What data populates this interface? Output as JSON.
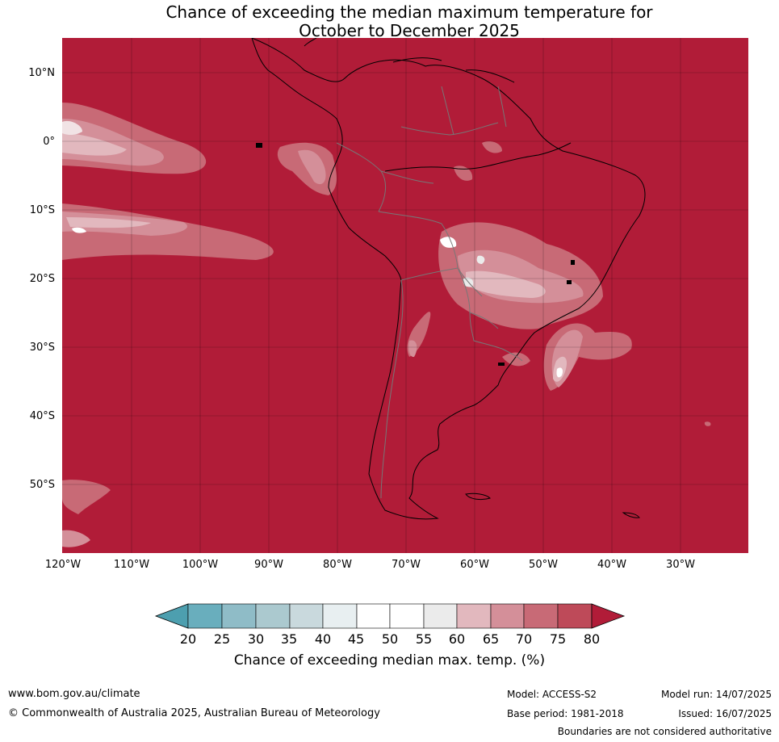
{
  "title_line1": "Chance of exceeding the median maximum temperature for",
  "title_line2": "October to December 2025",
  "map": {
    "lon_range": [
      -120,
      -20
    ],
    "lat_range": [
      -60,
      15
    ],
    "lat_ticks": [
      {
        "lat": 10,
        "label": "10°N"
      },
      {
        "lat": 0,
        "label": "0°"
      },
      {
        "lat": -10,
        "label": "10°S"
      },
      {
        "lat": -20,
        "label": "20°S"
      },
      {
        "lat": -30,
        "label": "30°S"
      },
      {
        "lat": -40,
        "label": "40°S"
      },
      {
        "lat": -50,
        "label": "50°S"
      }
    ],
    "lon_ticks": [
      {
        "lon": -120,
        "label": "120°W"
      },
      {
        "lon": -110,
        "label": "110°W"
      },
      {
        "lon": -100,
        "label": "100°W"
      },
      {
        "lon": -90,
        "label": "90°W"
      },
      {
        "lon": -80,
        "label": "80°W"
      },
      {
        "lon": -70,
        "label": "70°W"
      },
      {
        "lon": -60,
        "label": "60°W"
      },
      {
        "lon": -50,
        "label": "50°W"
      },
      {
        "lon": -40,
        "label": "40°W"
      },
      {
        "lon": -30,
        "label": "30°W"
      }
    ],
    "background_color": "#b11c38",
    "grid": true
  },
  "colorbar": {
    "ticks": [
      "20",
      "25",
      "30",
      "35",
      "40",
      "45",
      "50",
      "55",
      "60",
      "65",
      "70",
      "75",
      "80"
    ],
    "colors": [
      "#69aebd",
      "#8fbcc7",
      "#abc9cf",
      "#c9d9dd",
      "#e8eff1",
      "#ffffff",
      "#ffffff",
      "#ebebeb",
      "#e2b8be",
      "#d48f99",
      "#c86a76",
      "#be4a59"
    ],
    "under_color": "#4d9faf",
    "over_color": "#b11c38",
    "label": "Chance of exceeding median max. temp. (%)"
  },
  "footer": {
    "website": "www.bom.gov.au/climate",
    "copyright": "© Commonwealth of Australia 2025, Australian Bureau of Meteorology",
    "model": "Model: ACCESS-S2",
    "base_period": "Base period: 1981-2018",
    "model_run": "Model run: 14/07/2025",
    "issued": "Issued: 16/07/2025",
    "disclaimer": "Boundaries are not considered authoritative"
  }
}
